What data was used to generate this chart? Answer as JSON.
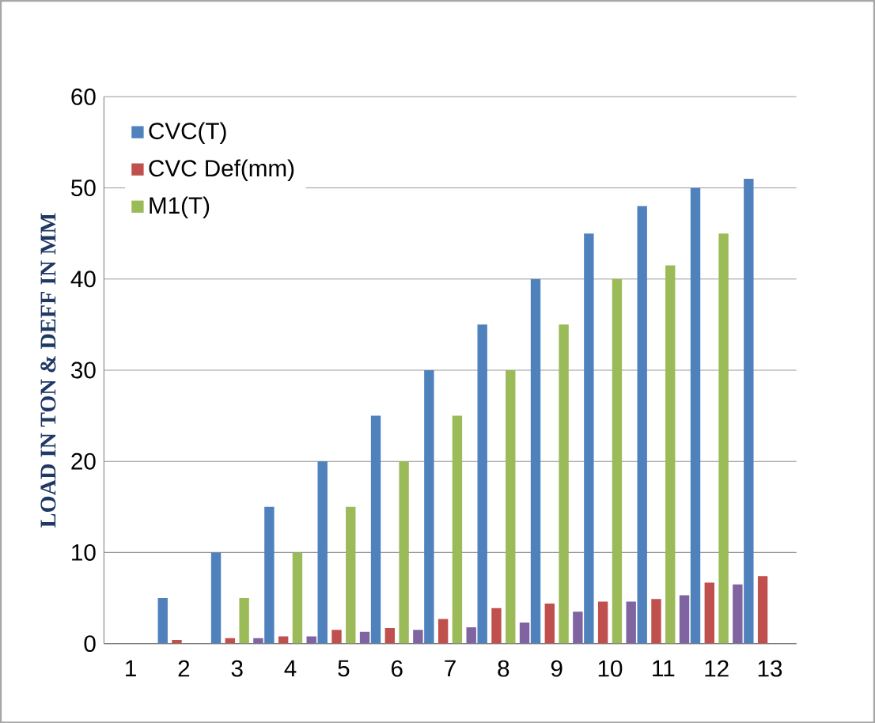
{
  "chart_data": {
    "type": "bar",
    "ylabel": "LOAD IN TON & DEFF IN MM",
    "categories": [
      "1",
      "2",
      "3",
      "4",
      "5",
      "6",
      "7",
      "8",
      "9",
      "10",
      "11",
      "12",
      "13"
    ],
    "series": [
      {
        "name": "CVC(T)",
        "color": "#4f81bd",
        "values": [
          0,
          5,
          10,
          15,
          20,
          25,
          30,
          35,
          40,
          45,
          48,
          50,
          51
        ]
      },
      {
        "name": "CVC Def(mm)",
        "color": "#c0504d",
        "values": [
          null,
          0.4,
          0.6,
          0.8,
          1.5,
          1.7,
          2.7,
          3.9,
          4.4,
          4.6,
          4.9,
          6.7,
          7.4
        ]
      },
      {
        "name": "M1(T)",
        "color": "#9bbb59",
        "values": [
          null,
          null,
          5,
          10,
          15,
          20,
          25,
          30,
          35,
          40,
          41.5,
          45,
          null
        ]
      },
      {
        "color": "#8064a2",
        "values": [
          null,
          null,
          0.6,
          0.8,
          1.3,
          1.5,
          1.8,
          2.3,
          3.5,
          4.6,
          5.3,
          6.5,
          null
        ]
      }
    ],
    "ylim": [
      0,
      60
    ],
    "yticks": [
      0,
      10,
      20,
      30,
      40,
      50,
      60
    ],
    "grid": "y",
    "legend": "top left"
  }
}
